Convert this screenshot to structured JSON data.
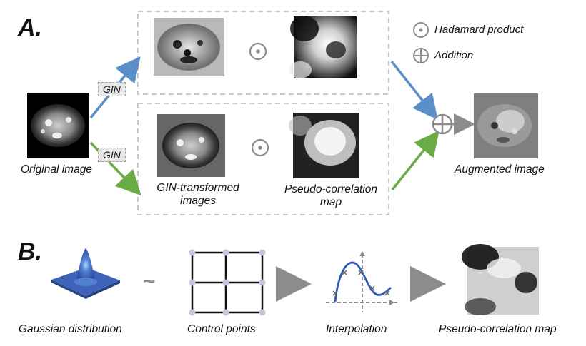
{
  "panel_a": {
    "letter": "A.",
    "original_label": "Original image",
    "gin_tag_top": "GIN",
    "gin_tag_bottom": "GIN",
    "gin_images_label_line1": "GIN-transformed",
    "gin_images_label_line2": "images",
    "pcm_label_line1": "Pseudo-correlation",
    "pcm_label_line2": "map",
    "augmented_label": "Augmented image",
    "legend": {
      "hadamard": "Hadamard product",
      "addition": "Addition"
    }
  },
  "panel_b": {
    "letter": "B.",
    "tilde": "~",
    "steps": [
      "Gaussian distribution",
      "Control points",
      "Interpolation",
      "Pseudo-correlation map"
    ]
  },
  "colors": {
    "blue_arrow": "#5b8fc7",
    "green_arrow": "#6aab45",
    "gray_arrow": "#8c8c8c",
    "dashed_box": "#c8c8c8"
  }
}
